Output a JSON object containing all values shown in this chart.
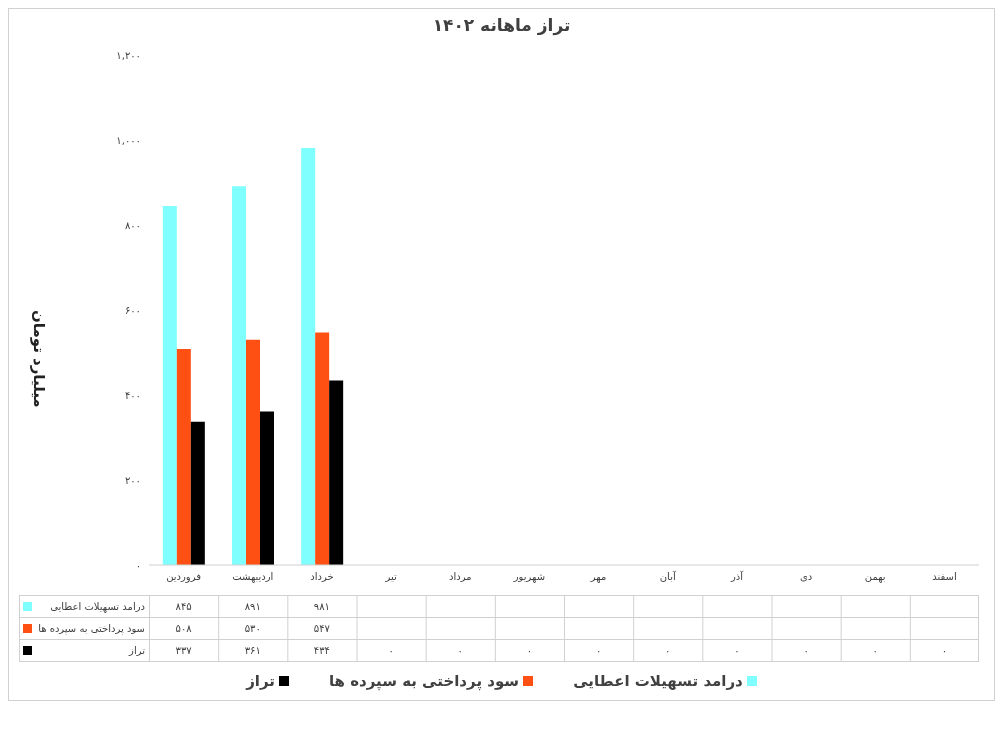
{
  "chart_data": {
    "type": "bar",
    "title": "تراز ماهانه ۱۴۰۲",
    "ylabel": "میلیارد تومان",
    "categories": [
      "فروردین",
      "اردیبهشت",
      "خرداد",
      "تیر",
      "مرداد",
      "شهریور",
      "مهر",
      "آبان",
      "آذر",
      "دی",
      "بهمن",
      "اسفند"
    ],
    "series": [
      {
        "name": "درامد تسهیلات اعطایی",
        "color": "#80ffff",
        "values": [
          845,
          891,
          981,
          null,
          null,
          null,
          null,
          null,
          null,
          null,
          null,
          null
        ],
        "value_labels": [
          "۸۴۵",
          "۸۹۱",
          "۹۸۱",
          null,
          null,
          null,
          null,
          null,
          null,
          null,
          null,
          null
        ]
      },
      {
        "name": "سود پرداختی به سپرده ها",
        "color": "#ff5014",
        "values": [
          508,
          530,
          547,
          null,
          null,
          null,
          null,
          null,
          null,
          null,
          null,
          null
        ],
        "value_labels": [
          "۵۰۸",
          "۵۳۰",
          "۵۴۷",
          null,
          null,
          null,
          null,
          null,
          null,
          null,
          null,
          null
        ]
      },
      {
        "name": "تراز",
        "color": "#000000",
        "values": [
          337,
          361,
          434,
          0,
          0,
          0,
          0,
          0,
          0,
          0,
          0,
          0
        ],
        "value_labels": [
          "۳۳۷",
          "۳۶۱",
          "۴۳۴",
          "۰",
          "۰",
          "۰",
          "۰",
          "۰",
          "۰",
          "۰",
          "۰",
          "۰"
        ]
      }
    ],
    "ylim": [
      0,
      1200
    ],
    "yticks": [
      {
        "value": 0,
        "label": "۰"
      },
      {
        "value": 200,
        "label": "۲۰۰"
      },
      {
        "value": 400,
        "label": "۴۰۰"
      },
      {
        "value": 600,
        "label": "۶۰۰"
      },
      {
        "value": 800,
        "label": "۸۰۰"
      },
      {
        "value": 1000,
        "label": "۱,۰۰۰"
      },
      {
        "value": 1200,
        "label": "۱,۲۰۰"
      }
    ],
    "grid": false,
    "legend": "bottom"
  }
}
